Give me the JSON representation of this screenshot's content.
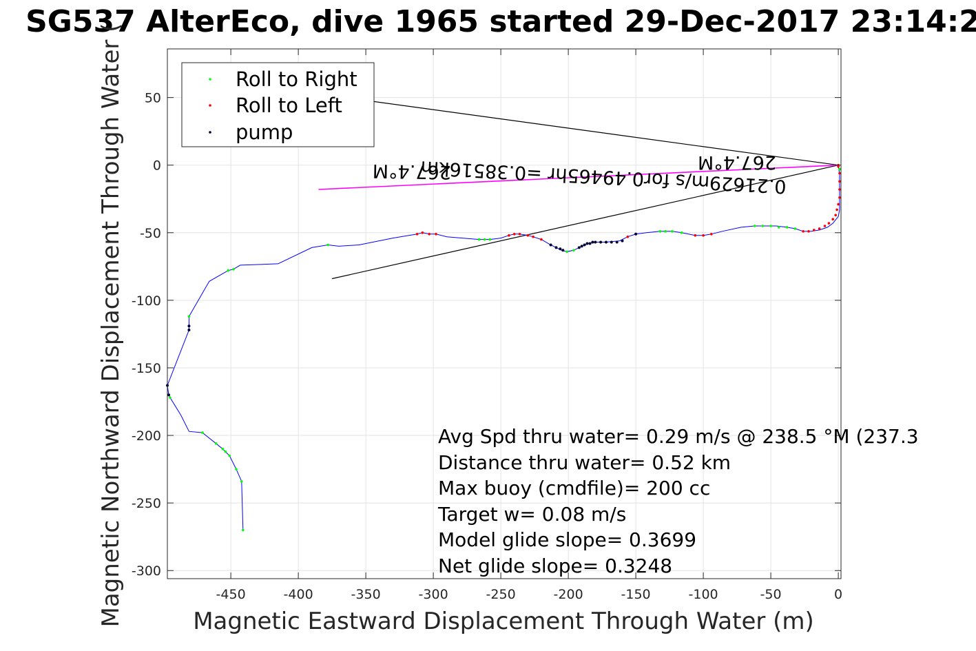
{
  "chart_data": {
    "type": "scatter",
    "title": "SG537 AlterEco, dive 1965 started 29-Dec-2017 23:14:2",
    "xlabel": "Magnetic Eastward Displacement Through Water (m)",
    "ylabel": "Magnetic Northward Displacement Through Water (",
    "xlim": [
      -497,
      2
    ],
    "ylim": [
      -306,
      86
    ],
    "xticks": [
      -450,
      -400,
      -350,
      -300,
      -250,
      -200,
      -150,
      -100,
      -50,
      0
    ],
    "yticks": [
      50,
      0,
      -50,
      -100,
      -150,
      -200,
      -250,
      -300
    ],
    "grid": true,
    "legend_position": "top-left",
    "legend": [
      "Roll to Right",
      "Roll to Left",
      "pump"
    ],
    "colors": {
      "track": "#0000ff",
      "roll_right": "#00ff00",
      "roll_left": "#ff0000",
      "pump": "#000033",
      "current": "#ff00ff",
      "vector": "#000000"
    },
    "track": [
      [
        -441,
        -270
      ],
      [
        -442,
        -234
      ],
      [
        -446,
        -225
      ],
      [
        -451,
        -215
      ],
      [
        -454,
        -212
      ],
      [
        -456,
        -210
      ],
      [
        -461,
        -206
      ],
      [
        -471,
        -198
      ],
      [
        -481,
        -197
      ],
      [
        -487,
        -185
      ],
      [
        -495,
        -172
      ],
      [
        -496,
        -170
      ],
      [
        -497,
        -163
      ],
      [
        -481,
        -122
      ],
      [
        -481,
        -119
      ],
      [
        -481,
        -112
      ],
      [
        -466,
        -86
      ],
      [
        -452,
        -78
      ],
      [
        -448,
        -77
      ],
      [
        -443,
        -74
      ],
      [
        -415,
        -73
      ],
      [
        -390,
        -61
      ],
      [
        -378,
        -59
      ],
      [
        -370,
        -60
      ],
      [
        -355,
        -59
      ],
      [
        -330,
        -54
      ],
      [
        -312,
        -51
      ],
      [
        -308,
        -50
      ],
      [
        -303,
        -51
      ],
      [
        -298,
        -51
      ],
      [
        -290,
        -53
      ],
      [
        -266,
        -55
      ],
      [
        -262,
        -55
      ],
      [
        -258,
        -55
      ],
      [
        -250,
        -54
      ],
      [
        -244,
        -52
      ],
      [
        -240,
        -51
      ],
      [
        -236,
        -51
      ],
      [
        -230,
        -52
      ],
      [
        -226,
        -53
      ],
      [
        -220,
        -55
      ],
      [
        -213,
        -59
      ],
      [
        -209,
        -61
      ],
      [
        -205,
        -63
      ],
      [
        -201,
        -64
      ],
      [
        -196,
        -63
      ],
      [
        -192,
        -61
      ],
      [
        -188,
        -59
      ],
      [
        -185,
        -58
      ],
      [
        -180,
        -57
      ],
      [
        -172,
        -57
      ],
      [
        -162,
        -56
      ],
      [
        -156,
        -53
      ],
      [
        -150,
        -51
      ],
      [
        -142,
        -50
      ],
      [
        -132,
        -49
      ],
      [
        -128,
        -49
      ],
      [
        -123,
        -49
      ],
      [
        -116,
        -50
      ],
      [
        -106,
        -52
      ],
      [
        -100,
        -52
      ],
      [
        -94,
        -51
      ],
      [
        -86,
        -49
      ],
      [
        -72,
        -46
      ],
      [
        -62,
        -45
      ],
      [
        -56,
        -45
      ],
      [
        -46,
        -45
      ],
      [
        -38,
        -46
      ],
      [
        -32,
        -47
      ],
      [
        -26,
        -49
      ],
      [
        -20,
        -49
      ],
      [
        -14,
        -48
      ],
      [
        -8,
        -46
      ],
      [
        -4,
        -43
      ],
      [
        0,
        -38
      ],
      [
        1,
        -33
      ],
      [
        1,
        -28
      ],
      [
        1,
        -24
      ],
      [
        1,
        -18
      ],
      [
        1,
        -12
      ],
      [
        1,
        -6
      ],
      [
        0,
        -1
      ],
      [
        0,
        0
      ]
    ],
    "roll_right": [
      [
        -441,
        -270
      ],
      [
        -442,
        -234
      ],
      [
        -446,
        -225
      ],
      [
        -451,
        -215
      ],
      [
        -454,
        -212
      ],
      [
        -456,
        -210
      ],
      [
        -461,
        -206
      ],
      [
        -471,
        -198
      ],
      [
        -495,
        -172
      ],
      [
        -481,
        -112
      ],
      [
        -452,
        -78
      ],
      [
        -448,
        -77
      ],
      [
        -378,
        -59
      ],
      [
        -266,
        -55
      ],
      [
        -262,
        -55
      ],
      [
        -258,
        -55
      ],
      [
        -201,
        -64
      ],
      [
        -196,
        -63
      ],
      [
        -132,
        -49
      ],
      [
        -128,
        -49
      ],
      [
        -123,
        -49
      ],
      [
        -116,
        -50
      ],
      [
        -62,
        -45
      ],
      [
        -56,
        -45
      ],
      [
        -50,
        -45
      ],
      [
        -44,
        -46
      ],
      [
        -38,
        -46
      ],
      [
        -32,
        -47
      ],
      [
        1,
        -3
      ]
    ],
    "roll_left": [
      [
        -312,
        -51
      ],
      [
        -308,
        -50
      ],
      [
        -303,
        -51
      ],
      [
        -298,
        -51
      ],
      [
        -244,
        -52
      ],
      [
        -240,
        -51
      ],
      [
        -236,
        -51
      ],
      [
        -230,
        -52
      ],
      [
        -226,
        -53
      ],
      [
        -220,
        -55
      ],
      [
        -156,
        -53
      ],
      [
        -106,
        -52
      ],
      [
        -100,
        -52
      ],
      [
        -94,
        -51
      ],
      [
        -26,
        -49
      ],
      [
        -22,
        -49
      ],
      [
        -18,
        -48
      ],
      [
        -14,
        -47
      ],
      [
        -10,
        -45
      ],
      [
        -7,
        -43
      ],
      [
        -4,
        -40
      ],
      [
        -2,
        -37
      ],
      [
        -1,
        -33
      ],
      [
        0,
        -29
      ],
      [
        1,
        -24
      ],
      [
        1,
        -18
      ],
      [
        1,
        -12
      ],
      [
        1,
        -6
      ],
      [
        0,
        -1
      ],
      [
        0,
        0
      ]
    ],
    "pump": [
      [
        -497,
        -163
      ],
      [
        -496,
        -170
      ],
      [
        -481,
        -122
      ],
      [
        -481,
        -119
      ],
      [
        -213,
        -59
      ],
      [
        -209,
        -61
      ],
      [
        -206,
        -62
      ],
      [
        -204,
        -63
      ],
      [
        -192,
        -61
      ],
      [
        -190,
        -60
      ],
      [
        -188,
        -59
      ],
      [
        -186,
        -58
      ],
      [
        -184,
        -58
      ],
      [
        -182,
        -57
      ],
      [
        -180,
        -57
      ],
      [
        -176,
        -57
      ],
      [
        -172,
        -57
      ],
      [
        -168,
        -57
      ],
      [
        -164,
        -57
      ],
      [
        -160,
        -56
      ],
      [
        -150,
        -51
      ]
    ],
    "vectors": [
      [
        [
          0,
          0
        ],
        [
          -375,
          -84
        ]
      ],
      [
        [
          0,
          0
        ],
        [
          -380,
          52
        ]
      ]
    ],
    "current_line": [
      [
        0,
        0
      ],
      [
        -385,
        -18
      ]
    ],
    "arrow_labels": {
      "heading_right": "267.4°M",
      "current_text": "0.21629m/s for0.49465hr =0.38516km",
      "heading_left": "267.4°M"
    },
    "annotations": [
      "Avg Spd thru water=  0.29 m/s @ 238.5 °M (237.3",
      "Distance thru water=  0.52 km",
      "Max buoy (cmdfile)= 200 cc",
      "Target w= 0.08 m/s",
      "Model glide slope= 0.3699",
      "Net glide slope= 0.3248"
    ]
  }
}
